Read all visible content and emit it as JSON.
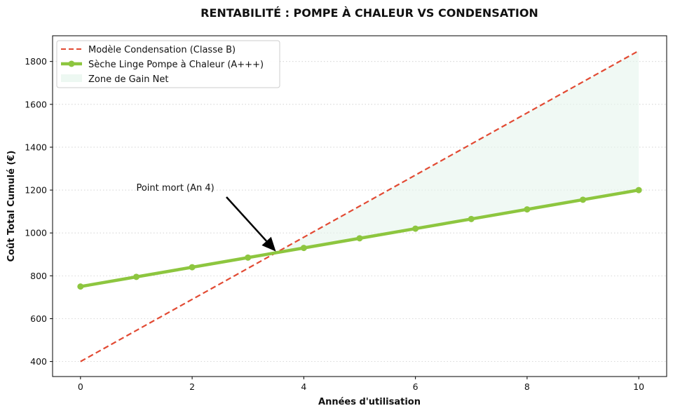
{
  "chart_data": {
    "type": "line",
    "title": "RENTABILITÉ : POMPE À CHALEUR VS CONDENSATION",
    "xlabel": "Années d'utilisation",
    "ylabel": "Coût Total Cumulé (€)",
    "xlim": [
      -0.5,
      10.5
    ],
    "ylim": [
      330,
      1920
    ],
    "xticks": [
      0,
      2,
      4,
      6,
      8,
      10
    ],
    "yticks": [
      400,
      600,
      800,
      1000,
      1200,
      1400,
      1600,
      1800
    ],
    "grid": "horizontal dotted",
    "legend_position": "top-left",
    "x": [
      0,
      1,
      2,
      3,
      4,
      5,
      6,
      7,
      8,
      9,
      10
    ],
    "series": [
      {
        "name": "Modèle Condensation (Classe B)",
        "style": "dashed",
        "color": "#e24a33",
        "values": [
          400,
          545,
          690,
          835,
          980,
          1125,
          1270,
          1415,
          1560,
          1705,
          1850
        ]
      },
      {
        "name": "Sèche Linge Pompe à Chaleur (A+++)",
        "style": "solid-markers",
        "color": "#8dc63f",
        "values": [
          750,
          795,
          840,
          885,
          930,
          975,
          1020,
          1065,
          1110,
          1155,
          1200
        ]
      }
    ],
    "fill_between": {
      "name": "Zone de Gain Net",
      "color": "#e6f5ec",
      "from_x": 3.5,
      "to_x": 10
    },
    "annotation": {
      "text": "Point mort (An 4)",
      "text_at": [
        1,
        1200
      ],
      "arrow_to": [
        3.5,
        907
      ]
    }
  }
}
